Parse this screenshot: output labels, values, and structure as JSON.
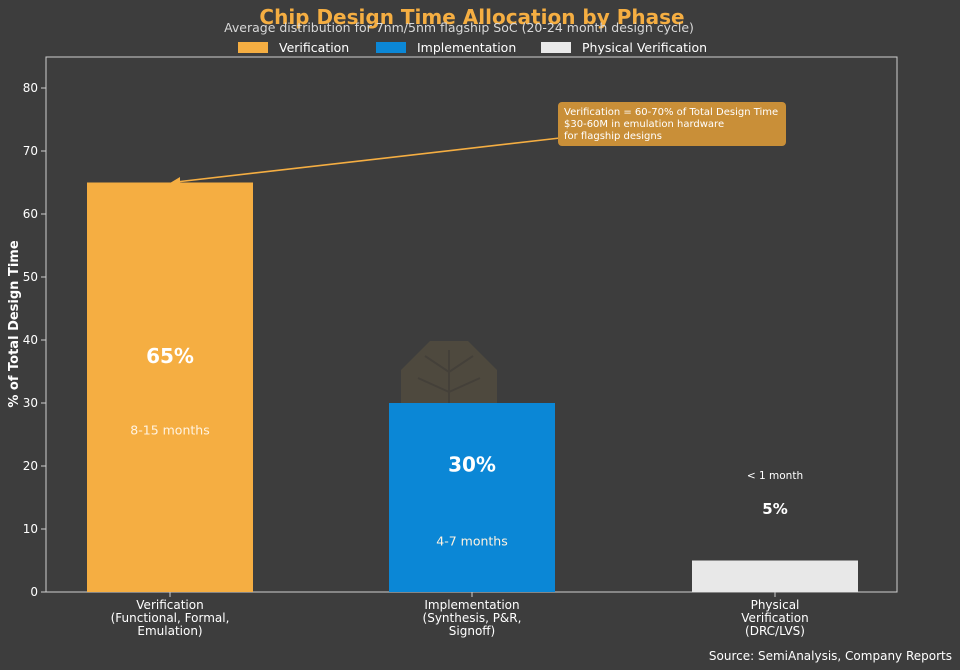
{
  "chart_data": {
    "type": "bar",
    "title": "Chip Design Time Allocation by Phase",
    "subtitle": "Average distribution for 7nm/5nm flagship SoC (20-24 month design cycle)",
    "xlabel": "",
    "ylabel": "% of Total Design Time",
    "ylim": [
      0,
      85
    ],
    "yticks": [
      "0",
      "10",
      "20",
      "30",
      "40",
      "50",
      "60",
      "70",
      "80"
    ],
    "grid": false,
    "legend_placement": "top-center",
    "categories": [
      "Verification\n(Functional, Formal,\nEmulation)",
      "Implementation\n(Synthesis, P&R,\nSignoff)",
      "Physical\nVerification\n(DRC/LVS)"
    ],
    "values": [
      65,
      30,
      5
    ],
    "value_labels": [
      "65%",
      "30%",
      "5%"
    ],
    "duration_labels": [
      "8-15 months",
      "4-7 months",
      "< 1 month"
    ],
    "legend": [
      "Verification",
      "Implementation",
      "Physical Verification"
    ],
    "colors": [
      "#f5ae42",
      "#0b87d6",
      "#e8e8e8"
    ],
    "annotation": [
      "Verification = 60-70% of Total Design Time",
      "$30-60M in emulation hardware",
      "for flagship designs"
    ],
    "source": "Source: SemiAnalysis, Company Reports"
  },
  "colors": {
    "background": "#3d3d3d",
    "title": "#f5ae42",
    "annotation_box": "#c98f38",
    "axis": "#cfcfcf"
  }
}
